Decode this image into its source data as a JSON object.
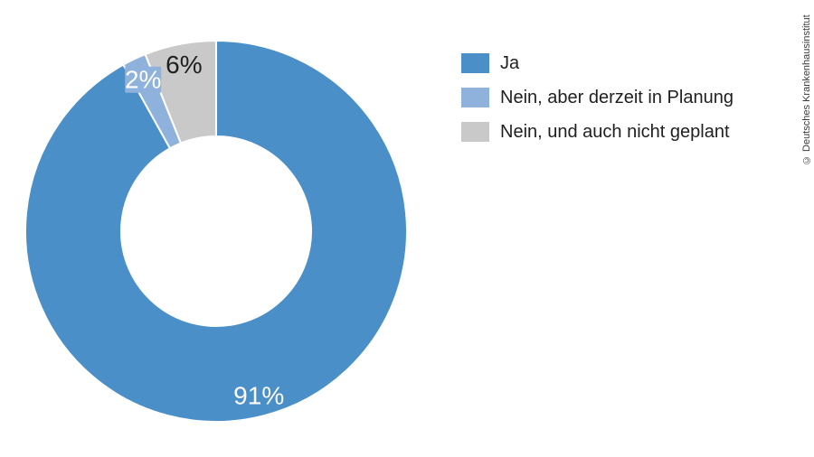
{
  "credit": "© Deutsches Krankenhausinstitut",
  "chart_data": {
    "type": "pie",
    "subtype": "donut",
    "unit": "percent",
    "start_angle_deg": 0,
    "direction": "clockwise",
    "legend_position": "right",
    "background_color": "#ffffff",
    "slices": [
      {
        "label": "Ja",
        "value": 91,
        "data_label": "91%",
        "color": "#4a8fc7",
        "label_color": "#ffffff",
        "label_background": false
      },
      {
        "label": "Nein, aber derzeit in Planung",
        "value": 2,
        "data_label": "2%",
        "color": "#8fb2dc",
        "label_color": "#ffffff",
        "label_background": true
      },
      {
        "label": "Nein, und auch nicht geplant",
        "value": 6,
        "data_label": "6%",
        "color": "#c9c9ca",
        "label_color": "#1f1f1f",
        "label_background": false
      }
    ]
  }
}
